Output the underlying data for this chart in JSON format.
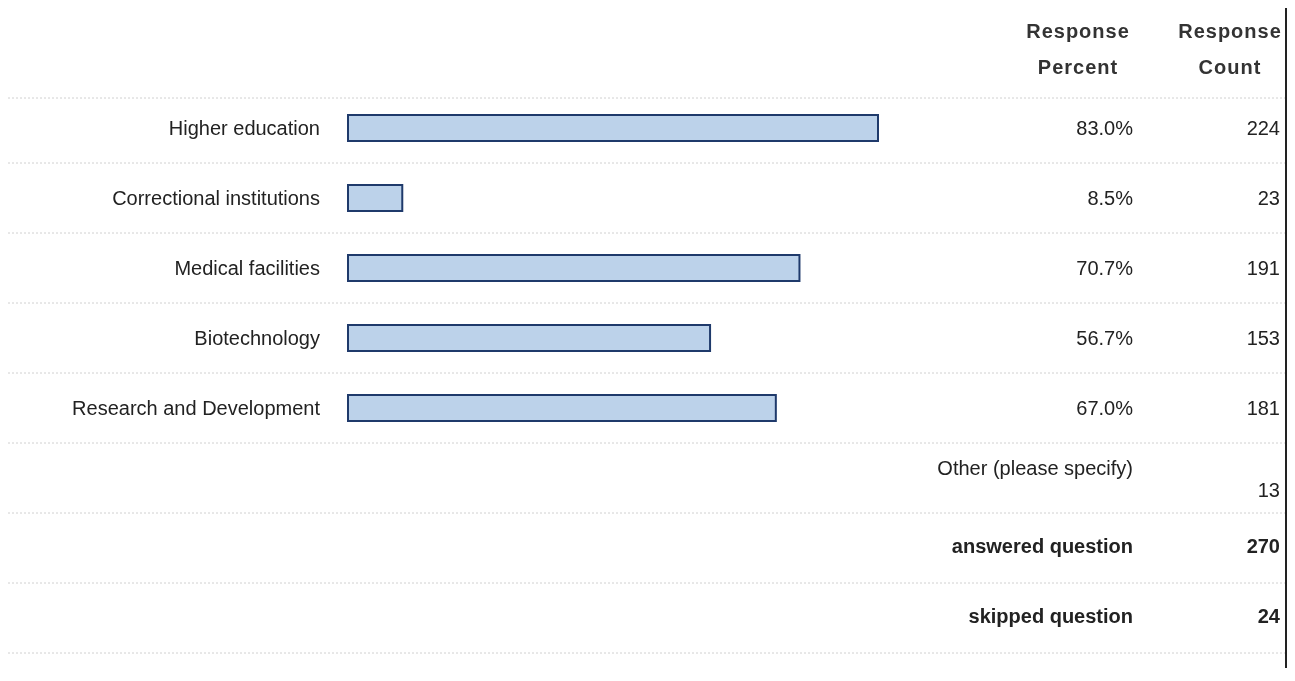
{
  "chart_data": {
    "type": "bar",
    "orientation": "horizontal",
    "categories": [
      "Higher education",
      "Correctional institutions",
      "Medical facilities",
      "Biotechnology",
      "Research and Development"
    ],
    "values": [
      83.0,
      8.5,
      70.7,
      56.7,
      67.0
    ],
    "value_labels": [
      "83.0%",
      "8.5%",
      "70.7%",
      "56.7%",
      "67.0%"
    ],
    "color": "#bcd2ea",
    "tick_labels": "y",
    "annotations": [
      "Response Percent",
      "Response Count",
      "224",
      "23",
      "191",
      "153",
      "181",
      "Other (please specify)",
      "13",
      "answered question",
      "270",
      "skipped question",
      "24"
    ]
  }
}
